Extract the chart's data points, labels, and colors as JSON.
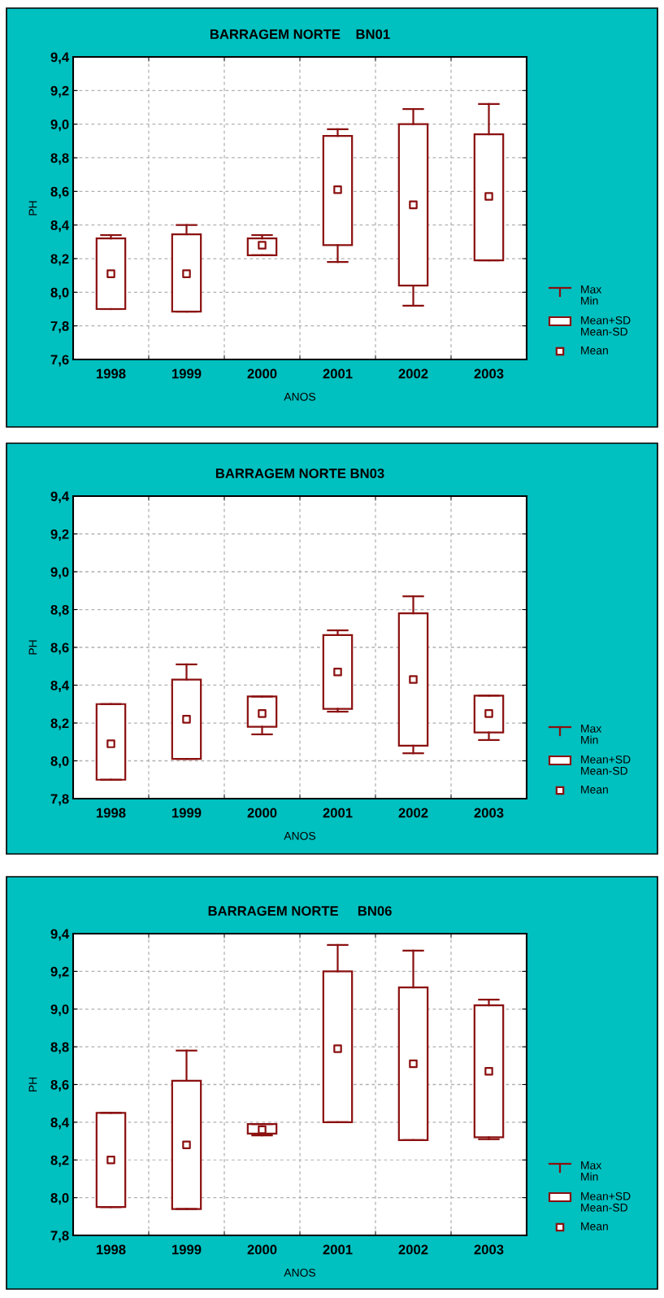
{
  "chart_data": [
    {
      "type": "box",
      "title": "BARRAGEM NORTE    BN01",
      "xlabel": "ANOS",
      "ylabel": "PH",
      "categories": [
        "1998",
        "1999",
        "2000",
        "2001",
        "2002",
        "2003"
      ],
      "series": [
        {
          "color": "#8b1010",
          "boxes": [
            {
              "low": 7.9,
              "q1": 7.9,
              "q3": 8.32,
              "high": 8.34,
              "mean": 8.11
            },
            {
              "low": 7.885,
              "q1": 7.885,
              "q3": 8.345,
              "high": 8.4,
              "mean": 8.11
            },
            {
              "low": 8.22,
              "q1": 8.22,
              "q3": 8.32,
              "high": 8.34,
              "mean": 8.28
            },
            {
              "low": 8.18,
              "q1": 8.28,
              "q3": 8.93,
              "high": 8.97,
              "mean": 8.61
            },
            {
              "low": 7.92,
              "q1": 8.04,
              "q3": 9.0,
              "high": 9.09,
              "mean": 8.52
            },
            {
              "low": 8.19,
              "q1": 8.19,
              "q3": 8.94,
              "high": 9.12,
              "mean": 8.57
            }
          ]
        }
      ],
      "ylim": [
        7.6,
        9.4
      ],
      "yticks": [
        {
          "value": 7.6,
          "label": "7,6"
        },
        {
          "value": 7.8,
          "label": "7,8"
        },
        {
          "value": 8.0,
          "label": "8,0"
        },
        {
          "value": 8.2,
          "label": "8,2"
        },
        {
          "value": 8.4,
          "label": "8,4"
        },
        {
          "value": 8.6,
          "label": "8,6"
        },
        {
          "value": 8.8,
          "label": "8,8"
        },
        {
          "value": 9.0,
          "label": "9,0"
        },
        {
          "value": 9.2,
          "label": "9,2"
        },
        {
          "value": 9.4,
          "label": "9,4"
        }
      ],
      "grid": true,
      "annotations": [
        "Max\nMin",
        "Mean+SD\nMean-SD",
        "Mean"
      ]
    },
    {
      "type": "box",
      "title": "BARRAGEM NORTE BN03",
      "xlabel": "ANOS",
      "ylabel": "PH",
      "categories": [
        "1998",
        "1999",
        "2000",
        "2001",
        "2002",
        "2003"
      ],
      "series": [
        {
          "color": "#8b1010",
          "boxes": [
            {
              "low": 7.9,
              "q1": 7.9,
              "q3": 8.3,
              "high": 8.3,
              "mean": 8.09
            },
            {
              "low": 8.01,
              "q1": 8.01,
              "q3": 8.43,
              "high": 8.51,
              "mean": 8.22
            },
            {
              "low": 8.14,
              "q1": 8.18,
              "q3": 8.34,
              "high": 8.34,
              "mean": 8.25
            },
            {
              "low": 8.26,
              "q1": 8.275,
              "q3": 8.665,
              "high": 8.69,
              "mean": 8.47
            },
            {
              "low": 8.04,
              "q1": 8.08,
              "q3": 8.78,
              "high": 8.87,
              "mean": 8.43
            },
            {
              "low": 8.11,
              "q1": 8.15,
              "q3": 8.345,
              "high": 8.345,
              "mean": 8.25
            }
          ]
        }
      ],
      "ylim": [
        7.8,
        9.4
      ],
      "yticks": [
        {
          "value": 7.8,
          "label": "7,8"
        },
        {
          "value": 8.0,
          "label": "8,0"
        },
        {
          "value": 8.2,
          "label": "8,2"
        },
        {
          "value": 8.4,
          "label": "8,4"
        },
        {
          "value": 8.6,
          "label": "8,6"
        },
        {
          "value": 8.8,
          "label": "8,8"
        },
        {
          "value": 9.0,
          "label": "9,0"
        },
        {
          "value": 9.2,
          "label": "9,2"
        },
        {
          "value": 9.4,
          "label": "9,4"
        }
      ],
      "grid": true,
      "annotations": [
        "Max\nMin",
        "Mean+SD\nMean-SD",
        "Mean"
      ]
    },
    {
      "type": "box",
      "title": "BARRAGEM NORTE     BN06",
      "xlabel": "ANOS",
      "ylabel": "PH",
      "categories": [
        "1998",
        "1999",
        "2000",
        "2001",
        "2002",
        "2003"
      ],
      "series": [
        {
          "color": "#8b1010",
          "boxes": [
            {
              "low": 7.95,
              "q1": 7.95,
              "q3": 8.45,
              "high": 8.45,
              "mean": 8.2
            },
            {
              "low": 7.94,
              "q1": 7.94,
              "q3": 8.62,
              "high": 8.78,
              "mean": 8.28
            },
            {
              "low": 8.33,
              "q1": 8.34,
              "q3": 8.39,
              "high": 8.39,
              "mean": 8.36
            },
            {
              "low": 8.4,
              "q1": 8.4,
              "q3": 9.2,
              "high": 9.34,
              "mean": 8.79
            },
            {
              "low": 8.305,
              "q1": 8.305,
              "q3": 9.115,
              "high": 9.31,
              "mean": 8.71
            },
            {
              "low": 8.31,
              "q1": 8.32,
              "q3": 9.02,
              "high": 9.05,
              "mean": 8.67
            }
          ]
        }
      ],
      "ylim": [
        7.8,
        9.4
      ],
      "yticks": [
        {
          "value": 7.8,
          "label": "7,8"
        },
        {
          "value": 8.0,
          "label": "8,0"
        },
        {
          "value": 8.2,
          "label": "8,2"
        },
        {
          "value": 8.4,
          "label": "8,4"
        },
        {
          "value": 8.6,
          "label": "8,6"
        },
        {
          "value": 8.8,
          "label": "8,8"
        },
        {
          "value": 9.0,
          "label": "9,0"
        },
        {
          "value": 9.2,
          "label": "9,2"
        },
        {
          "value": 9.4,
          "label": "9,4"
        }
      ],
      "grid": true,
      "annotations": [
        "Max\nMin",
        "Mean+SD\nMean-SD",
        "Mean"
      ]
    }
  ]
}
